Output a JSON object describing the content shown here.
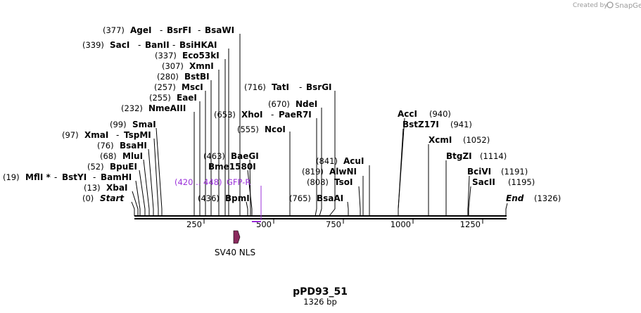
{
  "brand": {
    "prefix": "Created by",
    "name": "SnapGene"
  },
  "plasmid": {
    "name": "pPD93_51",
    "length_label": "1326 bp",
    "length": 1326
  },
  "enzymes": [
    {
      "id": "agei",
      "pos": "(377)",
      "names": [
        "AgeI",
        "BsrFI",
        "BsaWI"
      ],
      "site": 377
    },
    {
      "id": "saci",
      "pos": "(339)",
      "names": [
        "SacI",
        "BanII",
        "BsiHKAI"
      ],
      "site": 339
    },
    {
      "id": "eco53ki",
      "pos": "(337)",
      "names": [
        "Eco53kI"
      ],
      "site": 337
    },
    {
      "id": "xmni",
      "pos": "(307)",
      "names": [
        "XmnI"
      ],
      "site": 307
    },
    {
      "id": "bstbi",
      "pos": "(280)",
      "names": [
        "BstBI"
      ],
      "site": 280
    },
    {
      "id": "msci",
      "pos": "(257)",
      "names": [
        "MscI"
      ],
      "site": 257
    },
    {
      "id": "eaei",
      "pos": "(255)",
      "names": [
        "EaeI"
      ],
      "site": 255
    },
    {
      "id": "nmeaiii",
      "pos": "(232)",
      "names": [
        "NmeAIII"
      ],
      "site": 232
    },
    {
      "id": "smai",
      "pos": "(99)",
      "names": [
        "SmaI"
      ],
      "site": 99
    },
    {
      "id": "xmai",
      "pos": "(97)",
      "names": [
        "XmaI",
        "TspMI"
      ],
      "site": 97
    },
    {
      "id": "bsahi",
      "pos": "(76)",
      "names": [
        "BsaHI"
      ],
      "site": 76
    },
    {
      "id": "mlui",
      "pos": "(68)",
      "names": [
        "MluI"
      ],
      "site": 68
    },
    {
      "id": "bpuei",
      "pos": "(52)",
      "names": [
        "BpuEI"
      ],
      "site": 52
    },
    {
      "id": "mfli",
      "pos": "(19)",
      "names": [
        "MflI *",
        "BstYI",
        "BamHI"
      ],
      "site": 19
    },
    {
      "id": "xbai",
      "pos": "(13)",
      "names": [
        "XbaI"
      ],
      "site": 13
    },
    {
      "id": "start",
      "pos": "(0)",
      "names": [
        "Start"
      ],
      "site": 0
    },
    {
      "id": "tati",
      "pos": "(716)",
      "names": [
        "TatI",
        "BsrGI"
      ],
      "site": 716
    },
    {
      "id": "ndei",
      "pos": "(670)",
      "names": [
        "NdeI"
      ],
      "site": 670
    },
    {
      "id": "xhoi",
      "pos": "(653)",
      "names": [
        "XhoI",
        "PaeR7I"
      ],
      "site": 653
    },
    {
      "id": "ncoi",
      "pos": "(555)",
      "names": [
        "NcoI"
      ],
      "site": 555
    },
    {
      "id": "baegi",
      "pos": "(463)",
      "names": [
        "BaeGI"
      ],
      "site": 463
    },
    {
      "id": "bme1580i",
      "pos": "",
      "names": [
        "Bme1580I"
      ],
      "site": 463
    },
    {
      "id": "bpmi",
      "pos": "(436)",
      "names": [
        "BpmI"
      ],
      "site": 436
    },
    {
      "id": "acui",
      "pos": "(841)",
      "names": [
        "AcuI"
      ],
      "site": 841
    },
    {
      "id": "alwni",
      "pos": "(819)",
      "names": [
        "AlwNI"
      ],
      "site": 819
    },
    {
      "id": "tsoi",
      "pos": "(808)",
      "names": [
        "TsoI"
      ],
      "site": 808
    },
    {
      "id": "bsaai",
      "pos": "(765)",
      "names": [
        "BsaAI"
      ],
      "site": 765
    },
    {
      "id": "acci",
      "pos": "(940)",
      "names": [
        "AccI"
      ],
      "site": 940
    },
    {
      "id": "bstz17i",
      "pos": "(941)",
      "names": [
        "BstZ17I"
      ],
      "site": 941
    },
    {
      "id": "xcmi",
      "pos": "(1052)",
      "names": [
        "XcmI"
      ],
      "site": 1052
    },
    {
      "id": "btgzi",
      "pos": "(1114)",
      "names": [
        "BtgZI"
      ],
      "site": 1114
    },
    {
      "id": "bcivi",
      "pos": "(1191)",
      "names": [
        "BciVI"
      ],
      "site": 1191
    },
    {
      "id": "sacii",
      "pos": "(1195)",
      "names": [
        "SacII"
      ],
      "site": 1195
    },
    {
      "id": "end",
      "pos": "(1326)",
      "names": [
        "End"
      ],
      "site": 1326
    }
  ],
  "primer": {
    "range": "(420 .. 448)",
    "name": "GFP-R",
    "color": "#9b30d9"
  },
  "feature": {
    "name": "SV40 NLS",
    "color": "#8b2b5e"
  },
  "ticks": [
    "250",
    "500",
    "750",
    "1000",
    "1250"
  ],
  "colors": {
    "backbone": "#000000",
    "primer": "#9b30d9",
    "feature": "#8b2b5e",
    "brand": "#9a9a9a"
  }
}
